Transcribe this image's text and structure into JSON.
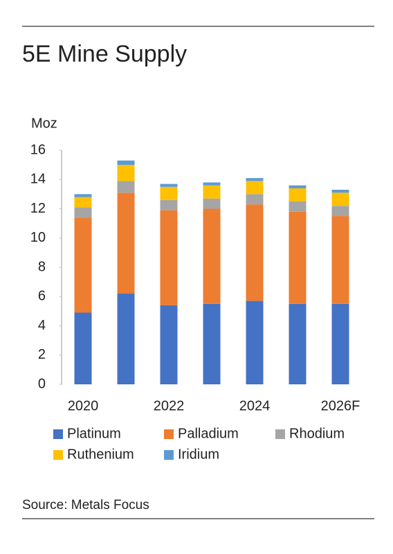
{
  "chart_data": {
    "type": "stacked_bar",
    "title": "5E Mine Supply",
    "y_label": "Moz",
    "source": "Source: Metals Focus",
    "categories": [
      "2020",
      null,
      "2022",
      null,
      "2024",
      null,
      "2026F"
    ],
    "series": [
      {
        "name": "Platinum",
        "color": "#4472c4",
        "values": [
          4.9,
          6.2,
          5.4,
          5.5,
          5.7,
          5.5,
          5.5
        ]
      },
      {
        "name": "Palladium",
        "color": "#ed7d31",
        "values": [
          6.5,
          6.9,
          6.5,
          6.5,
          6.6,
          6.3,
          6.0
        ]
      },
      {
        "name": "Rhodium",
        "color": "#a5a5a5",
        "values": [
          0.7,
          0.8,
          0.7,
          0.7,
          0.7,
          0.7,
          0.7
        ]
      },
      {
        "name": "Ruthenium",
        "color": "#ffc000",
        "values": [
          0.7,
          1.1,
          0.9,
          0.9,
          0.9,
          0.9,
          0.9
        ]
      },
      {
        "name": "Iridium",
        "color": "#5b9bd5",
        "values": [
          0.2,
          0.3,
          0.2,
          0.2,
          0.2,
          0.2,
          0.2
        ]
      }
    ],
    "ylim": [
      0,
      16
    ],
    "yticks": [
      0,
      2,
      4,
      6,
      8,
      10,
      12,
      14,
      16
    ]
  }
}
